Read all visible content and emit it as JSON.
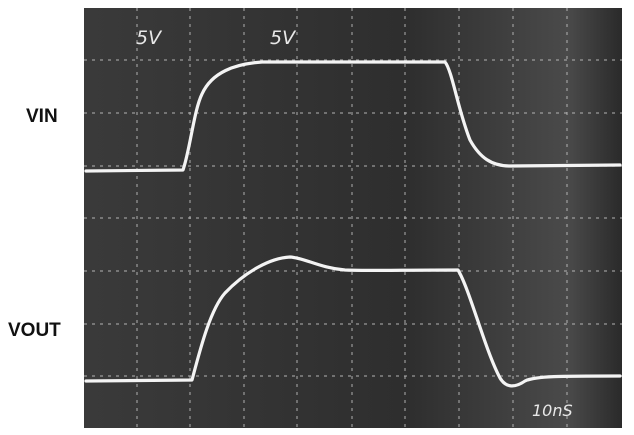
{
  "screen": {
    "channel_scales": [
      "5V",
      "5V"
    ],
    "time_scale": "10nS"
  },
  "traces": [
    {
      "label": "VIN"
    },
    {
      "label": "VOUT"
    }
  ]
}
